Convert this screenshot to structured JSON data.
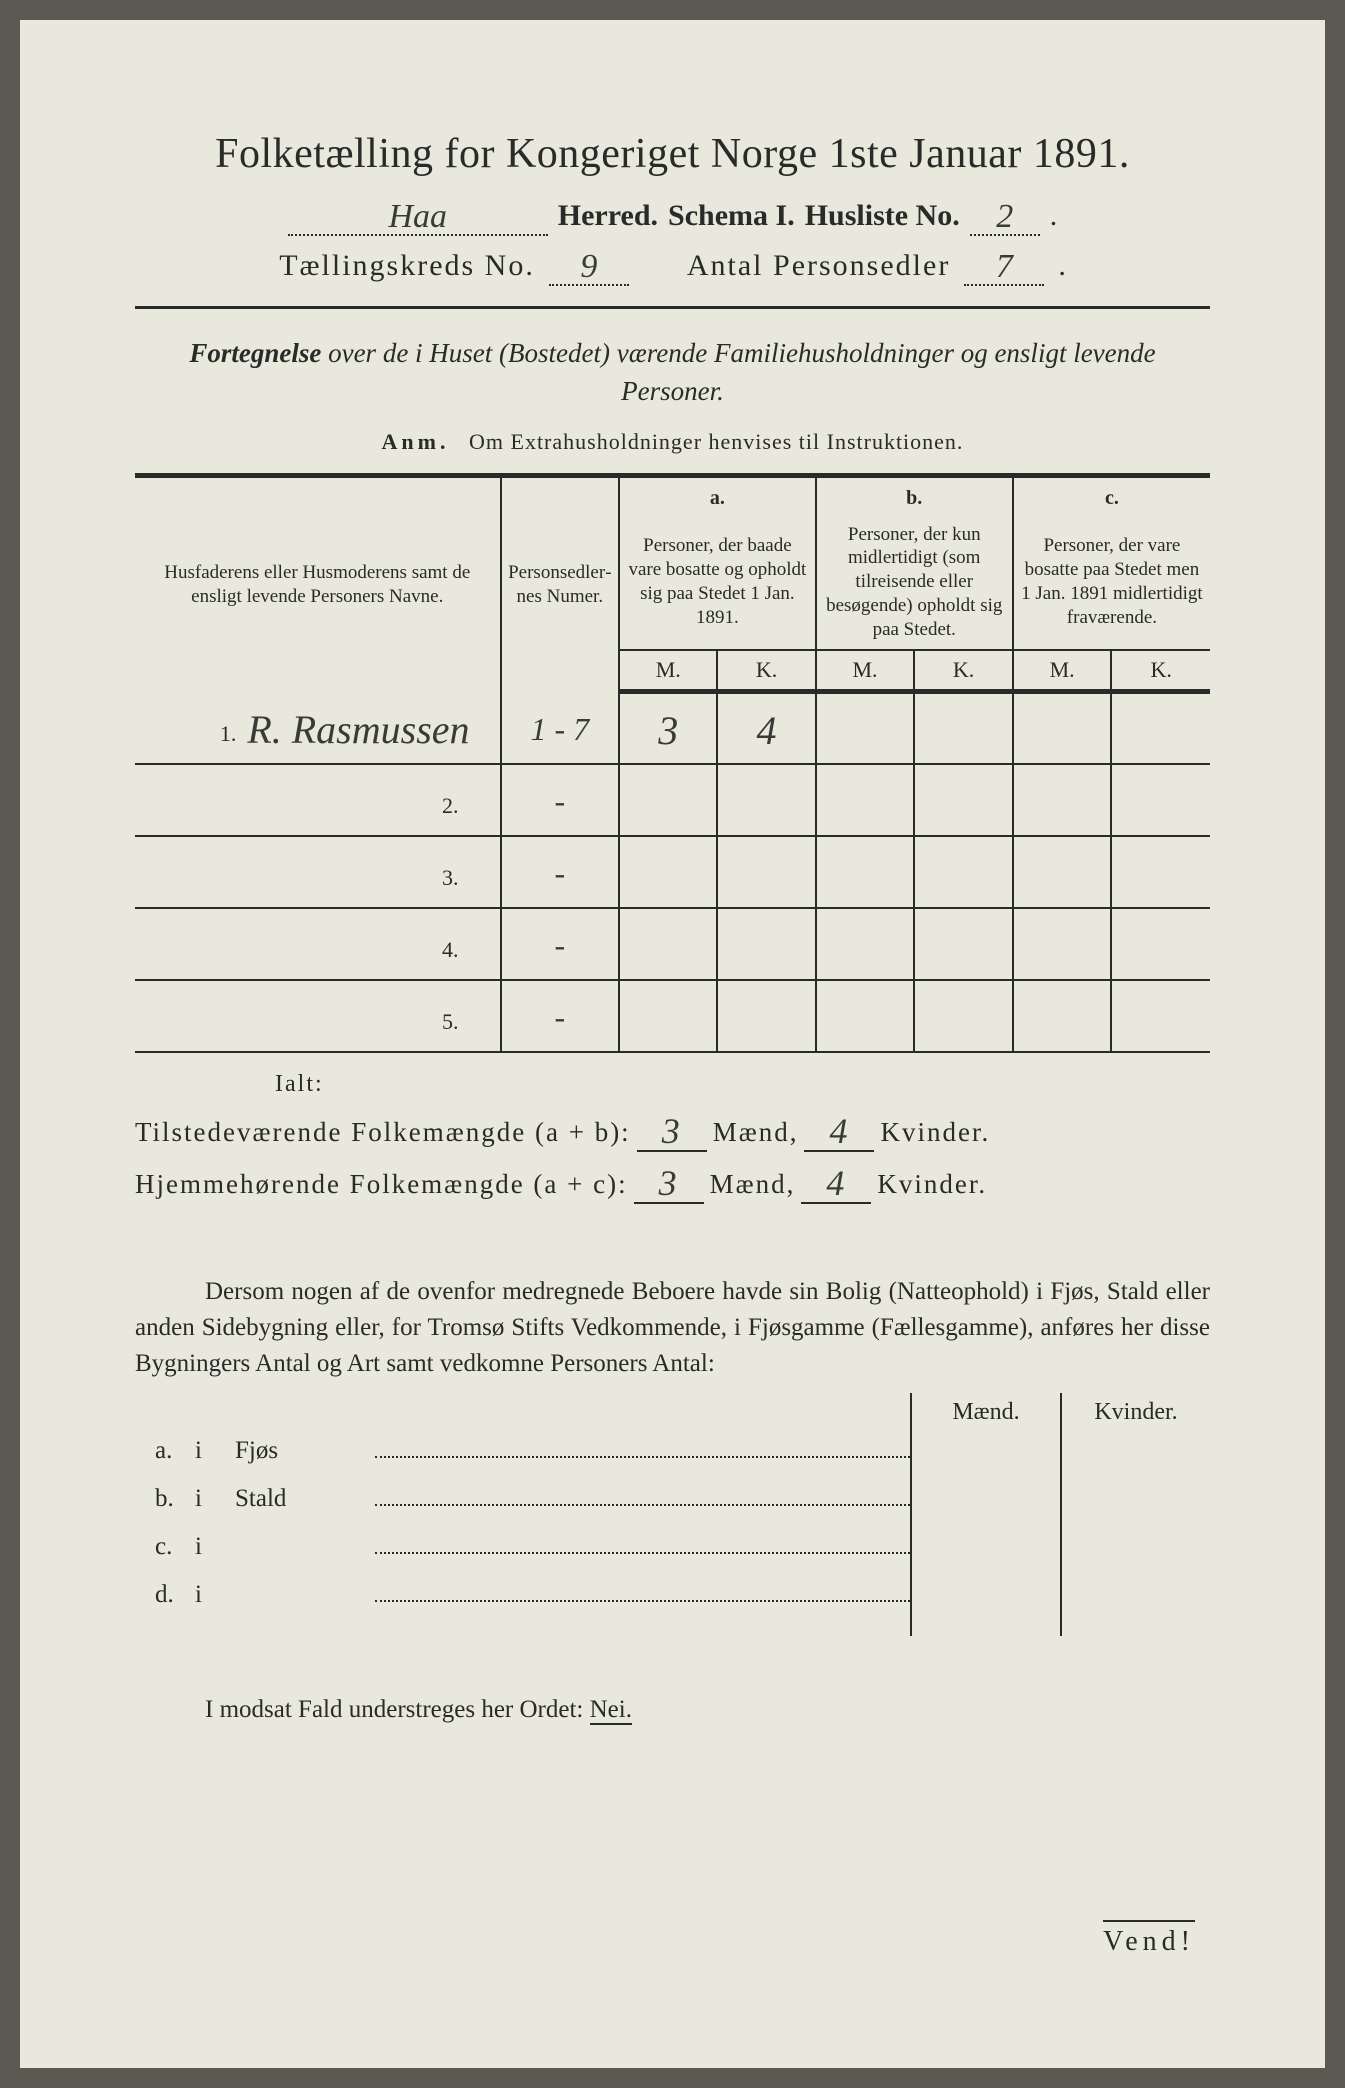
{
  "title": "Folketælling for Kongeriget Norge 1ste Januar 1891.",
  "header": {
    "herred_value": "Haa",
    "herred_label": "Herred.",
    "schema_label": "Schema I.",
    "husliste_label": "Husliste No.",
    "husliste_value": "2",
    "kreds_label": "Tællingskreds No.",
    "kreds_value": "9",
    "antal_label": "Antal Personsedler",
    "antal_value": "7"
  },
  "subtitle_prefix": "Fortegnelse",
  "subtitle_rest": " over de i Huset (Bostedet) værende Familiehusholdninger og ensligt levende Personer.",
  "anm_label": "Anm.",
  "anm_text": "Om Extrahusholdninger henvises til Instruktionen.",
  "table": {
    "col_name": "Husfaderens eller Husmoderens samt de ensligt levende Personers Navne.",
    "col_ps": "Person­sedler­nes Numer.",
    "a_label": "a.",
    "a_text": "Personer, der baade vare bosatte og opholdt sig paa Stedet 1 Jan. 1891.",
    "b_label": "b.",
    "b_text": "Personer, der kun midlertidigt (som tilreisende eller besøgende) opholdt sig paa Stedet.",
    "c_label": "c.",
    "c_text": "Personer, der vare bosatte paa Stedet men 1 Jan. 1891 midlertidigt fraværende.",
    "M": "M.",
    "K": "K.",
    "rows": [
      {
        "no": "1.",
        "name": "R. Rasmussen",
        "ps": "1 - 7",
        "aM": "3",
        "aK": "4",
        "bM": "",
        "bK": "",
        "cM": "",
        "cK": ""
      },
      {
        "no": "2.",
        "name": "",
        "ps": "-",
        "aM": "",
        "aK": "",
        "bM": "",
        "bK": "",
        "cM": "",
        "cK": ""
      },
      {
        "no": "3.",
        "name": "",
        "ps": "-",
        "aM": "",
        "aK": "",
        "bM": "",
        "bK": "",
        "cM": "",
        "cK": ""
      },
      {
        "no": "4.",
        "name": "",
        "ps": "-",
        "aM": "",
        "aK": "",
        "bM": "",
        "bK": "",
        "cM": "",
        "cK": ""
      },
      {
        "no": "5.",
        "name": "",
        "ps": "-",
        "aM": "",
        "aK": "",
        "bM": "",
        "bK": "",
        "cM": "",
        "cK": ""
      }
    ]
  },
  "ialt": "Ialt:",
  "sum1": {
    "label": "Tilstedeværende Folkemængde (a + b):",
    "m": "3",
    "m_suffix": "Mænd,",
    "k": "4",
    "k_suffix": "Kvinder."
  },
  "sum2": {
    "label": "Hjemmehørende Folkemængde (a + c):",
    "m": "3",
    "m_suffix": "Mænd,",
    "k": "4",
    "k_suffix": "Kvinder."
  },
  "paragraph": "Dersom nogen af de ovenfor medregnede Beboere havde sin Bolig (Natteophold) i Fjøs, Stald eller anden Sidebygning eller, for Tromsø Stifts Vedkommende, i Fjøsgamme (Fællesgamme), anføres her disse Bygningers Antal og Art samt vedkomne Personers Antal:",
  "mk_header": {
    "m": "Mænd.",
    "k": "Kvinder."
  },
  "items": [
    {
      "letter": "a.",
      "i": "i",
      "name": "Fjøs"
    },
    {
      "letter": "b.",
      "i": "i",
      "name": "Stald"
    },
    {
      "letter": "c.",
      "i": "i",
      "name": ""
    },
    {
      "letter": "d.",
      "i": "i",
      "name": ""
    }
  ],
  "nei_prefix": "I modsat Fald understreges her Ordet: ",
  "nei_word": "Nei.",
  "vend": "Vend!",
  "colors": {
    "paper": "#e8e8dc",
    "ink": "#2a2a28",
    "handwriting": "#3a3a36"
  }
}
